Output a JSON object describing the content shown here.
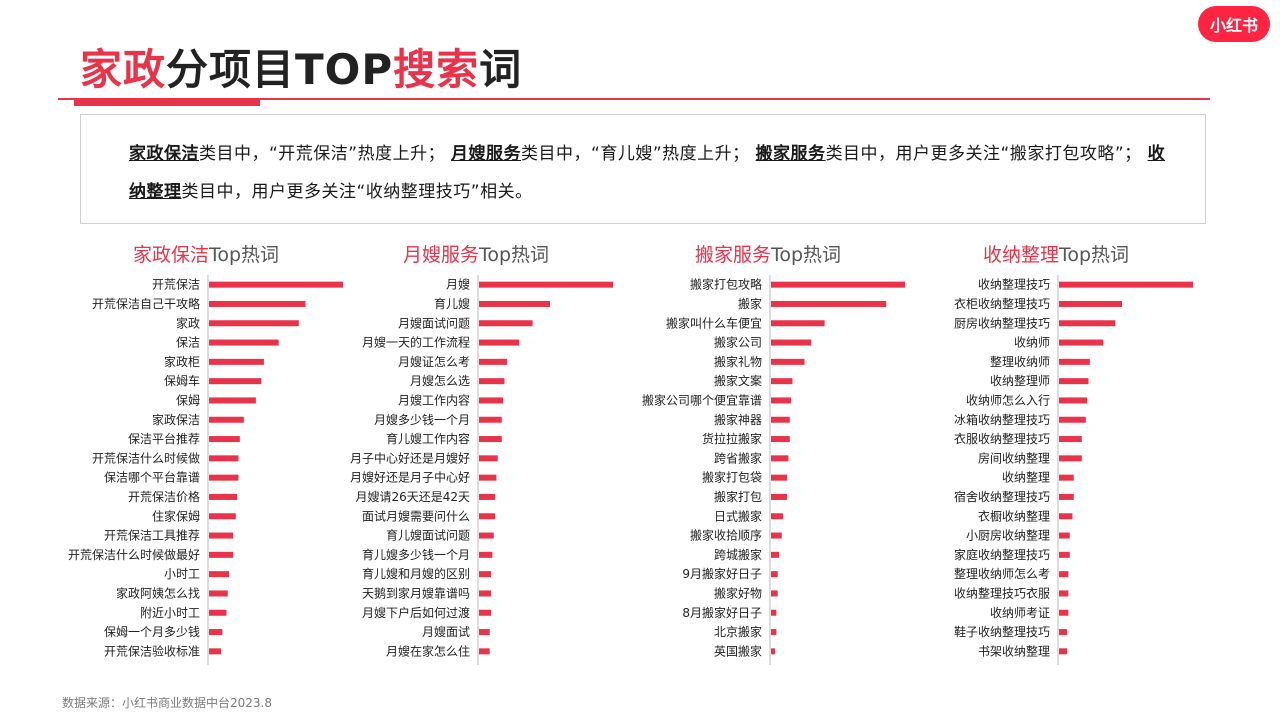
{
  "header": {
    "title_hl": "家政",
    "title_mid": "分项目TOP",
    "title_hl2": "搜索",
    "title_end": "词",
    "logo_text": "小红书"
  },
  "summary": {
    "seg1": "家政保洁",
    "seg2": "类目中，“开荒保洁”热度上升；",
    "seg3": "月嫂服务",
    "seg4": "类目中，“育儿嫂”热度上升；",
    "seg5": "搬家服务",
    "seg6": "类目中，用户更多关注“搬家打包攻略”；",
    "seg7": "收纳整理",
    "seg8": "类目中，用户更多关注“收纳整理技巧”相关。"
  },
  "footer": {
    "source": "数据来源：小红书商业数据中台2023.8"
  },
  "colors": {
    "accent": "#e8334a",
    "bar": "#e8334a",
    "axis": "#bbbbbb"
  },
  "chart_data": [
    {
      "type": "bar",
      "orientation": "horizontal",
      "title": "家政保洁Top热词",
      "title_category": "家政保洁",
      "title_suffix": "Top热词",
      "categories": [
        "开荒保洁",
        "开荒保洁自己干攻略",
        "家政",
        "保洁",
        "家政柜",
        "保姆车",
        "保姆",
        "家政保洁",
        "保洁平台推荐",
        "开荒保洁什么时候做",
        "保洁哪个平台靠谱",
        "开荒保洁价格",
        "住家保姆",
        "开荒保洁工具推荐",
        "开荒保洁什么时候做最好",
        "小时工",
        "家政阿姨怎么找",
        "附近小时工",
        "保姆一个月多少钱",
        "开荒保洁验收标准"
      ],
      "values": [
        100,
        72,
        67,
        52,
        41,
        39,
        35,
        26,
        23,
        22,
        22,
        21,
        20,
        18,
        18,
        15,
        14,
        13,
        10,
        9
      ]
    },
    {
      "type": "bar",
      "orientation": "horizontal",
      "title": "月嫂服务Top热词",
      "title_category": "月嫂服务",
      "title_suffix": "Top热词",
      "categories": [
        "月嫂",
        "育儿嫂",
        "月嫂面试问题",
        "月嫂一天的工作流程",
        "月嫂证怎么考",
        "月嫂怎么选",
        "月嫂工作内容",
        "月嫂多少钱一个月",
        "育儿嫂工作内容",
        "月子中心好还是月嫂好",
        "月嫂好还是月子中心好",
        "月嫂请26天还是42天",
        "面试月嫂需要问什么",
        "育儿嫂面试问题",
        "育儿嫂多少钱一个月",
        "育儿嫂和月嫂的区别",
        "天鹅到家月嫂靠谱吗",
        "月嫂下户后如何过渡",
        "月嫂面试",
        "月嫂在家怎么住"
      ],
      "values": [
        100,
        53,
        40,
        30,
        21,
        19,
        18,
        17,
        17,
        14,
        13,
        12,
        12,
        11,
        10,
        9,
        9,
        9,
        8,
        8
      ]
    },
    {
      "type": "bar",
      "orientation": "horizontal",
      "title": "搬家服务Top热词",
      "title_category": "搬家服务",
      "title_suffix": "Top热词",
      "categories": [
        "搬家打包攻略",
        "搬家",
        "搬家叫什么车便宜",
        "搬家公司",
        "搬家礼物",
        "搬家文案",
        "搬家公司哪个便宜靠谱",
        "搬家神器",
        "货拉拉搬家",
        "跨省搬家",
        "搬家打包袋",
        "搬家打包",
        "日式搬家",
        "搬家收拾顺序",
        "跨城搬家",
        "9月搬家好日子",
        "搬家好物",
        "8月搬家好日子",
        "北京搬家",
        "英国搬家"
      ],
      "values": [
        100,
        86,
        40,
        30,
        25,
        16,
        15,
        14,
        14,
        13,
        12,
        12,
        9,
        8,
        6,
        5,
        5,
        4,
        4,
        3
      ]
    },
    {
      "type": "bar",
      "orientation": "horizontal",
      "title": "收纳整理Top热词",
      "title_category": "收纳整理",
      "title_suffix": "Top热词",
      "categories": [
        "收纳整理技巧",
        "衣柜收纳整理技巧",
        "厨房收纳整理技巧",
        "收纳师",
        "整理收纳师",
        "收纳整理师",
        "收纳师怎么入行",
        "冰箱收纳整理技巧",
        "衣服收纳整理技巧",
        "房间收纳整理",
        "收纳整理",
        "宿舍收纳整理技巧",
        "衣橱收纳整理",
        "小厨房收纳整理",
        "家庭收纳整理技巧",
        "整理收纳师怎么考",
        "收纳整理技巧衣服",
        "收纳师考证",
        "鞋子收纳整理技巧",
        "书架收纳整理"
      ],
      "values": [
        100,
        47,
        42,
        33,
        23,
        22,
        21,
        20,
        17,
        17,
        11,
        11,
        10,
        8,
        8,
        7,
        7,
        7,
        6,
        6
      ]
    }
  ]
}
